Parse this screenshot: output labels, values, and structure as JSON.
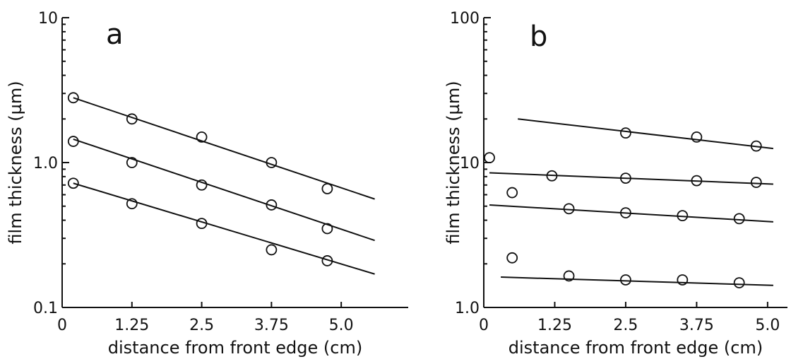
{
  "chart_data": [
    {
      "type": "scatter",
      "panel": "a",
      "xlabel": "distance from front edge (cm)",
      "ylabel": "film thickness (µm)",
      "yscale": "log",
      "xlim": [
        0,
        6.2
      ],
      "ylim": [
        0.1,
        10
      ],
      "xticks": [
        0,
        1.25,
        2.5,
        3.75,
        5.0
      ],
      "xtick_labels": [
        "0",
        "1.25",
        "2.5",
        "3.75",
        "5.0"
      ],
      "yticks": [
        0.1,
        1.0,
        10
      ],
      "ytick_labels": [
        "0.1",
        "1.0",
        "10"
      ],
      "grid": false,
      "series": [
        {
          "x": [
            0.2,
            1.25,
            2.5,
            3.75,
            4.75
          ],
          "y": [
            2.8,
            2.0,
            1.5,
            1.0,
            0.66
          ],
          "fit": {
            "x": [
              0.2,
              5.6
            ],
            "y": [
              2.8,
              0.56
            ]
          }
        },
        {
          "x": [
            0.2,
            1.25,
            2.5,
            3.75,
            4.75
          ],
          "y": [
            1.4,
            1.0,
            0.7,
            0.51,
            0.35
          ],
          "fit": {
            "x": [
              0.2,
              5.6
            ],
            "y": [
              1.45,
              0.29
            ]
          }
        },
        {
          "x": [
            0.2,
            1.25,
            2.5,
            3.75,
            4.75
          ],
          "y": [
            0.72,
            0.52,
            0.38,
            0.25,
            0.21
          ],
          "fit": {
            "x": [
              0.2,
              5.6
            ],
            "y": [
              0.72,
              0.17
            ]
          }
        }
      ]
    },
    {
      "type": "scatter",
      "panel": "b",
      "xlabel": "distance from front edge (cm)",
      "ylabel": "film thickness (µm)",
      "yscale": "log",
      "xlim": [
        0,
        5.35
      ],
      "ylim": [
        1.0,
        100
      ],
      "xticks": [
        0,
        1.25,
        2.5,
        3.75,
        5.0
      ],
      "xtick_labels": [
        "0",
        "1.25",
        "2.5",
        "3.75",
        "5.0"
      ],
      "yticks": [
        1.0,
        10,
        100
      ],
      "ytick_labels": [
        "1.0",
        "10",
        "100"
      ],
      "grid": false,
      "series": [
        {
          "x": [
            2.5,
            3.75,
            4.8
          ],
          "y": [
            16,
            15,
            13
          ],
          "fit": {
            "x": [
              0.6,
              5.1
            ],
            "y": [
              20,
              12.5
            ]
          }
        },
        {
          "x": [
            0.1,
            1.2,
            2.5,
            3.75,
            4.8
          ],
          "y": [
            10.8,
            8.1,
            7.8,
            7.5,
            7.3
          ],
          "fit": {
            "x": [
              0.1,
              5.1
            ],
            "y": [
              8.5,
              7.1
            ]
          }
        },
        {
          "x": [
            0.5,
            1.5,
            2.5,
            3.5,
            4.5
          ],
          "y": [
            6.2,
            4.8,
            4.5,
            4.3,
            4.1
          ],
          "fit": {
            "x": [
              0.1,
              5.1
            ],
            "y": [
              5.1,
              3.9
            ]
          }
        },
        {
          "x": [
            0.5,
            1.5,
            2.5,
            3.5,
            4.5
          ],
          "y": [
            2.2,
            1.65,
            1.55,
            1.55,
            1.48
          ],
          "fit": {
            "x": [
              0.3,
              5.1
            ],
            "y": [
              1.62,
              1.42
            ]
          }
        }
      ]
    }
  ]
}
